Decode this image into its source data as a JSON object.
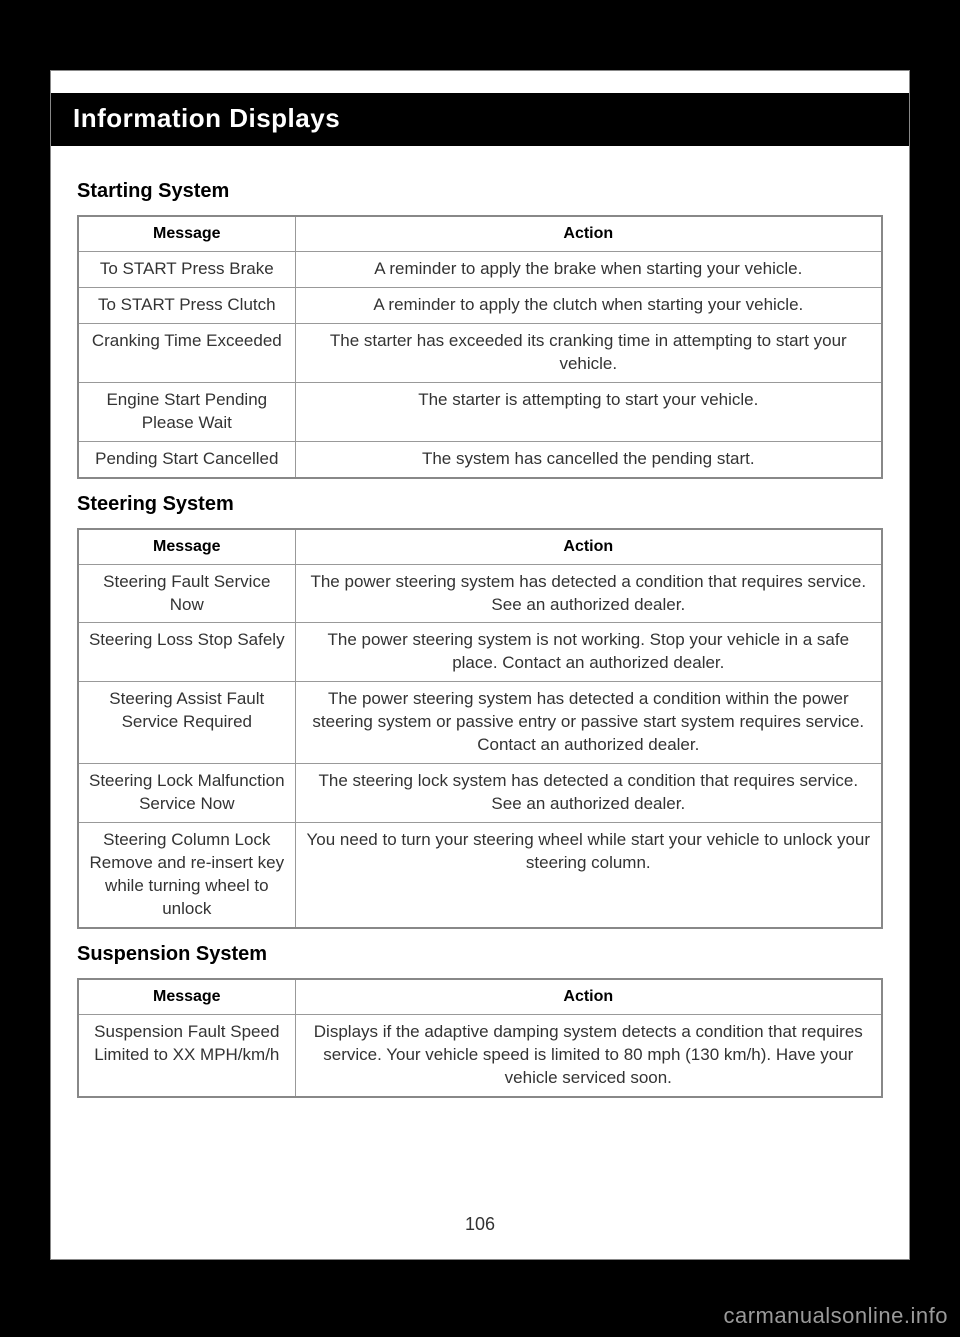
{
  "header": {
    "title": "Information Displays"
  },
  "page_number": "106",
  "watermark": "carmanualsonline.info",
  "sections": {
    "starting": {
      "title": "Starting System",
      "headers": {
        "message": "Message",
        "action": "Action"
      },
      "rows": [
        {
          "message": "To START Press Brake",
          "action": "A reminder to apply the brake when starting your vehicle."
        },
        {
          "message": "To START Press Clutch",
          "action": "A reminder to apply the clutch when starting your vehicle."
        },
        {
          "message": "Cranking Time Exceeded",
          "action": "The starter has exceeded its cranking time in attempting to start your vehicle."
        },
        {
          "message": "Engine Start Pending Please Wait",
          "action": "The starter is attempting to start your vehicle."
        },
        {
          "message": "Pending Start Cancelled",
          "action": "The system has cancelled the pending start."
        }
      ]
    },
    "steering": {
      "title": "Steering System",
      "headers": {
        "message": "Message",
        "action": "Action"
      },
      "rows": [
        {
          "message": "Steering Fault Service Now",
          "action": "The power steering system has detected a condition that requires service. See an authorized dealer."
        },
        {
          "message": "Steering Loss Stop Safely",
          "action": "The power steering system is not working. Stop your vehicle in a safe place. Contact an authorized dealer."
        },
        {
          "message": "Steering Assist Fault Service Required",
          "action": "The power steering system has detected a condition within the power steering system or passive entry or passive start system requires service. Contact an authorized dealer."
        },
        {
          "message": "Steering Lock Malfunction Service Now",
          "action": "The steering lock system has detected a condition that requires service. See an authorized dealer."
        },
        {
          "message": "Steering Column Lock Remove and re-insert key while turning wheel to unlock",
          "action": "You need to turn your steering wheel while start your vehicle to unlock your steering column."
        }
      ]
    },
    "suspension": {
      "title": "Suspension System",
      "headers": {
        "message": "Message",
        "action": "Action"
      },
      "rows": [
        {
          "message": "Suspension Fault Speed Limited to XX MPH/km/h",
          "action": "Displays if the adaptive damping system detects a condition that requires service. Your vehicle speed is limited to 80 mph (130 km/h). Have your vehicle serviced soon."
        }
      ]
    }
  }
}
